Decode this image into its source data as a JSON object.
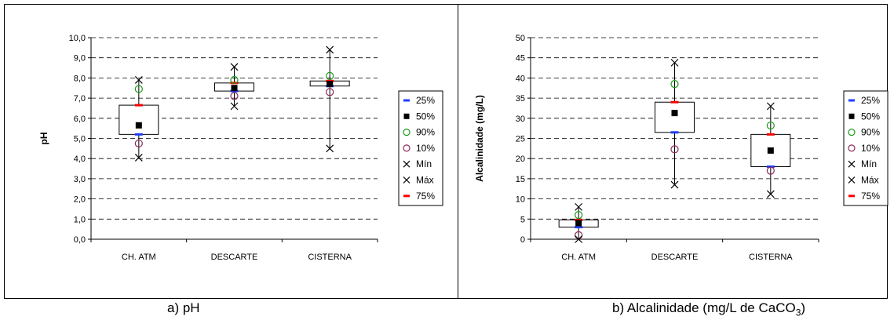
{
  "captions": {
    "a": "a) pH",
    "b_prefix": "b) Alcalinidade (mg/L de CaCO",
    "b_sub": "3",
    "b_suffix": ")"
  },
  "legend_colors": {
    "p25": "#1f3cff",
    "p50": "#000000",
    "p90": "#1a9b1a",
    "p10": "#8b2a5a",
    "min": "#000000",
    "max": "#000000",
    "p75": "#ff0000"
  },
  "chart_data": [
    {
      "type": "box",
      "title": "",
      "xlabel": "",
      "ylabel": "pH",
      "ylim": [
        0,
        10
      ],
      "yticks": [
        "0,0",
        "1,0",
        "2,0",
        "3,0",
        "4,0",
        "5,0",
        "6,0",
        "7,0",
        "8,0",
        "9,0",
        "10,0"
      ],
      "grid": "horizontal dashed",
      "legend_position": "right",
      "categories": [
        "CH. ATM",
        "DESCARTE",
        "CISTERNA"
      ],
      "legend": [
        "25%",
        "50%",
        "90%",
        "10%",
        "Mín",
        "Máx",
        "75%"
      ],
      "series": [
        {
          "name": "25%",
          "values": [
            5.2,
            7.35,
            7.6
          ]
        },
        {
          "name": "50%",
          "values": [
            5.65,
            7.5,
            7.7
          ]
        },
        {
          "name": "90%",
          "values": [
            7.45,
            7.9,
            8.1
          ]
        },
        {
          "name": "10%",
          "values": [
            4.75,
            7.1,
            7.3
          ]
        },
        {
          "name": "Mín",
          "values": [
            4.05,
            6.6,
            4.5
          ]
        },
        {
          "name": "Máx",
          "values": [
            7.9,
            8.55,
            9.4
          ]
        },
        {
          "name": "75%",
          "values": [
            6.65,
            7.75,
            7.85
          ]
        }
      ]
    },
    {
      "type": "box",
      "title": "",
      "xlabel": "",
      "ylabel": "Alcalinidade (mg/L)",
      "ylim": [
        0,
        50
      ],
      "yticks": [
        "0",
        "5",
        "10",
        "15",
        "20",
        "25",
        "30",
        "35",
        "40",
        "45",
        "50"
      ],
      "grid": "horizontal dashed",
      "legend_position": "right",
      "categories": [
        "CH. ATM",
        "DESCARTE",
        "CISTERNA"
      ],
      "legend": [
        "25%",
        "50%",
        "90%",
        "10%",
        "Mín",
        "Máx",
        "75%"
      ],
      "series": [
        {
          "name": "25%",
          "values": [
            3.0,
            26.5,
            18.0
          ]
        },
        {
          "name": "50%",
          "values": [
            4.0,
            31.3,
            22.0
          ]
        },
        {
          "name": "90%",
          "values": [
            6.0,
            38.5,
            28.2
          ]
        },
        {
          "name": "10%",
          "values": [
            1.0,
            22.3,
            17.0
          ]
        },
        {
          "name": "Mín",
          "values": [
            0.0,
            13.5,
            11.2
          ]
        },
        {
          "name": "Máx",
          "values": [
            8.0,
            43.8,
            33.0
          ]
        },
        {
          "name": "75%",
          "values": [
            4.8,
            34.0,
            26.0
          ]
        }
      ]
    }
  ]
}
